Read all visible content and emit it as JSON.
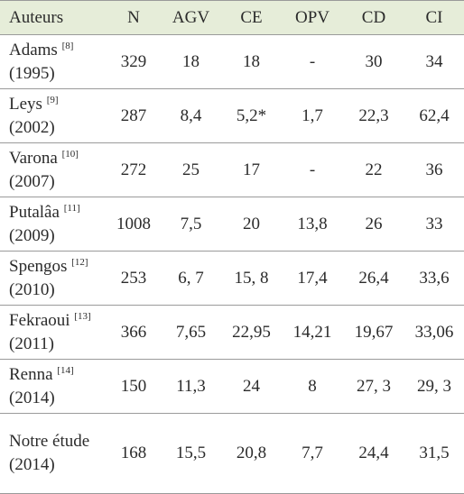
{
  "table": {
    "header": [
      "Auteurs",
      "N",
      "AGV",
      "CE",
      "OPV",
      "CD",
      "CI"
    ],
    "rows": [
      [
        {
          "name": "Adams",
          "ref": "[8]",
          "year": "(1995)"
        },
        "329",
        "18",
        "18",
        "-",
        "30",
        "34"
      ],
      [
        {
          "name": "Leys",
          "ref": "[9]",
          "year": "(2002)"
        },
        "287",
        "8,4",
        "5,2*",
        "1,7",
        "22,3",
        "62,4"
      ],
      [
        {
          "name": "Varona",
          "ref": "[10]",
          "year": "(2007)"
        },
        "272",
        "25",
        "17",
        "-",
        "22",
        "36"
      ],
      [
        {
          "name": "Putalâa",
          "ref": "[11]",
          "year": "(2009)"
        },
        "1008",
        "7,5",
        "20",
        "13,8",
        "26",
        "33"
      ],
      [
        {
          "name": "Spengos",
          "ref": "[12]",
          "year": "(2010)"
        },
        "253",
        "6, 7",
        "15, 8",
        "17,4",
        "26,4",
        "33,6"
      ],
      [
        {
          "name": "Fekraoui",
          "ref": "[13]",
          "year": "(2011)"
        },
        "366",
        "7,65",
        "22,95",
        "14,21",
        "19,67",
        "33,06"
      ],
      [
        {
          "name": "Renna",
          "ref": "[14]",
          "year": "(2014)"
        },
        "150",
        "11,3",
        "24",
        "8",
        "27, 3",
        "29, 3"
      ],
      [
        {
          "name": "Notre étude",
          "year": "(2014)"
        },
        "168",
        "15,5",
        "20,8",
        "7,7",
        "24,4",
        "31,5"
      ]
    ]
  }
}
